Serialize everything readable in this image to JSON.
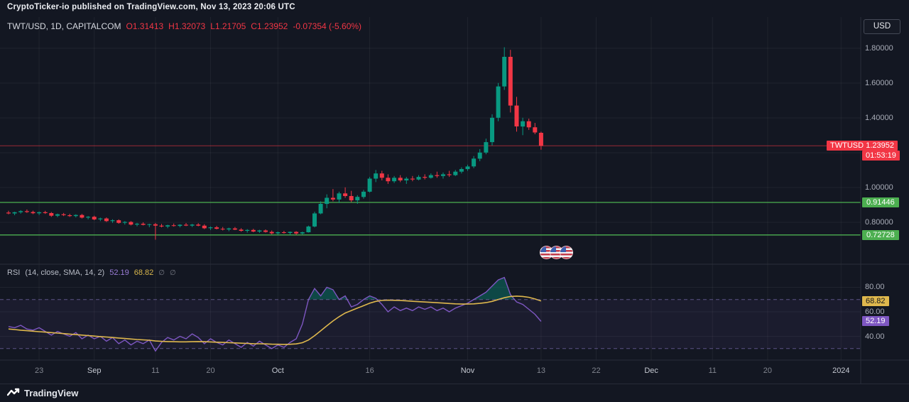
{
  "attribution": "CryptoTicker-io published on TradingView.com, Nov 13, 2023 20:06 UTC",
  "header": {
    "symbol_line": "TWT/USD, 1D, CAPITALCOM",
    "ohlc": {
      "open": "O1.31413",
      "high": "H1.32073",
      "low": "L1.21705",
      "close": "C1.23952",
      "change": "-0.07354 (-5.60%)"
    },
    "currency_button": "USD"
  },
  "rsi_legend": {
    "title": "RSI",
    "params": "(14, close, SMA, 14, 2)",
    "rsi_value": "52.19",
    "sma_value": "68.82",
    "empty1": "∅",
    "empty2": "∅"
  },
  "badges": {
    "price": {
      "symbol": "TWTUSD",
      "value": "1.23952",
      "countdown": "01:53:19",
      "bg": "#f23645"
    },
    "level1": {
      "value": "0.91446",
      "bg": "#4caf50"
    },
    "level2": {
      "value": "0.72728",
      "bg": "#4caf50"
    },
    "sma": {
      "value": "68.82",
      "bg": "#dfb84d"
    },
    "rsi": {
      "value": "52.19",
      "bg": "#7e57c2"
    }
  },
  "footer": {
    "brand": "TradingView"
  },
  "colors": {
    "up": "#089981",
    "down": "#f23645",
    "level_green": "#4caf50",
    "price_line": "#f23645",
    "rsi_line": "#7e57c2",
    "sma_line": "#dfb84d",
    "band_fill": "rgba(126,87,194,0.08)",
    "band_line": "rgba(150,132,212,0.55)",
    "over_fill": "rgba(8,153,129,0.38)",
    "grid": "rgba(250,250,250,0.055)",
    "divider": "#2a2e39"
  },
  "time_axis": {
    "labels": [
      {
        "text": "23",
        "day": 5,
        "major": false
      },
      {
        "text": "Sep",
        "day": 14,
        "major": true
      },
      {
        "text": "11",
        "day": 24,
        "major": false
      },
      {
        "text": "20",
        "day": 33,
        "major": false
      },
      {
        "text": "Oct",
        "day": 44,
        "major": true
      },
      {
        "text": "16",
        "day": 59,
        "major": false
      },
      {
        "text": "Nov",
        "day": 75,
        "major": true
      },
      {
        "text": "13",
        "day": 87,
        "major": false
      },
      {
        "text": "22",
        "day": 96,
        "major": false
      },
      {
        "text": "Dec",
        "day": 105,
        "major": true
      },
      {
        "text": "11",
        "day": 115,
        "major": false
      },
      {
        "text": "20",
        "day": 124,
        "major": false
      },
      {
        "text": "2024",
        "day": 136,
        "major": true
      }
    ]
  },
  "chart_data": [
    {
      "type": "candlestick",
      "title": "TWT/USD, 1D, CAPITALCOM",
      "ohlc_last": {
        "open": 1.31413,
        "high": 1.32073,
        "low": 1.21705,
        "close": 1.23952,
        "change": -0.07354,
        "change_pct": -5.6
      },
      "y_axis": {
        "visible_labels": [
          [
            1.8,
            "1.80000"
          ],
          [
            1.6,
            "1.60000"
          ],
          [
            1.4,
            "1.40000"
          ],
          [
            1.0,
            "1.00000"
          ],
          [
            0.8,
            "0.80000"
          ]
        ],
        "grid": [
          0.8,
          1.0,
          1.2,
          1.4,
          1.6,
          1.8
        ],
        "range": [
          0.57,
          1.96
        ]
      },
      "levels": {
        "current_price": 1.23952,
        "horizontal_line_1": 0.91446,
        "horizontal_line_2": 0.72728
      },
      "candles": [
        [
          0.856,
          0.866,
          0.846,
          0.851
        ],
        [
          0.851,
          0.861,
          0.841,
          0.858
        ],
        [
          0.858,
          0.87,
          0.85,
          0.864
        ],
        [
          0.864,
          0.874,
          0.854,
          0.859
        ],
        [
          0.859,
          0.867,
          0.847,
          0.852
        ],
        [
          0.852,
          0.862,
          0.842,
          0.858
        ],
        [
          0.858,
          0.866,
          0.848,
          0.853
        ],
        [
          0.853,
          0.859,
          0.831,
          0.838
        ],
        [
          0.838,
          0.85,
          0.83,
          0.846
        ],
        [
          0.846,
          0.854,
          0.836,
          0.841
        ],
        [
          0.841,
          0.849,
          0.831,
          0.836
        ],
        [
          0.836,
          0.846,
          0.828,
          0.842
        ],
        [
          0.842,
          0.848,
          0.822,
          0.827
        ],
        [
          0.827,
          0.836,
          0.817,
          0.832
        ],
        [
          0.832,
          0.838,
          0.812,
          0.817
        ],
        [
          0.817,
          0.827,
          0.807,
          0.822
        ],
        [
          0.822,
          0.828,
          0.802,
          0.807
        ],
        [
          0.807,
          0.817,
          0.797,
          0.812
        ],
        [
          0.812,
          0.817,
          0.792,
          0.797
        ],
        [
          0.797,
          0.807,
          0.787,
          0.802
        ],
        [
          0.802,
          0.807,
          0.782,
          0.787
        ],
        [
          0.787,
          0.797,
          0.777,
          0.792
        ],
        [
          0.792,
          0.8,
          0.782,
          0.786
        ],
        [
          0.786,
          0.792,
          0.772,
          0.789
        ],
        [
          0.789,
          0.796,
          0.7,
          0.781
        ],
        [
          0.781,
          0.791,
          0.771,
          0.776
        ],
        [
          0.776,
          0.786,
          0.766,
          0.783
        ],
        [
          0.783,
          0.793,
          0.775,
          0.779
        ],
        [
          0.779,
          0.789,
          0.771,
          0.786
        ],
        [
          0.786,
          0.796,
          0.778,
          0.781
        ],
        [
          0.781,
          0.791,
          0.773,
          0.787
        ],
        [
          0.787,
          0.795,
          0.777,
          0.781
        ],
        [
          0.781,
          0.789,
          0.761,
          0.766
        ],
        [
          0.766,
          0.776,
          0.756,
          0.771
        ],
        [
          0.771,
          0.779,
          0.759,
          0.763
        ],
        [
          0.763,
          0.773,
          0.753,
          0.759
        ],
        [
          0.759,
          0.769,
          0.749,
          0.765
        ],
        [
          0.765,
          0.773,
          0.755,
          0.758
        ],
        [
          0.758,
          0.766,
          0.746,
          0.751
        ],
        [
          0.751,
          0.761,
          0.741,
          0.756
        ],
        [
          0.756,
          0.763,
          0.743,
          0.747
        ],
        [
          0.747,
          0.757,
          0.739,
          0.753
        ],
        [
          0.753,
          0.759,
          0.741,
          0.745
        ],
        [
          0.745,
          0.753,
          0.731,
          0.737
        ],
        [
          0.737,
          0.747,
          0.729,
          0.743
        ],
        [
          0.743,
          0.751,
          0.735,
          0.739
        ],
        [
          0.739,
          0.747,
          0.727,
          0.745
        ],
        [
          0.745,
          0.749,
          0.728,
          0.736
        ],
        [
          0.736,
          0.746,
          0.73,
          0.743
        ],
        [
          0.743,
          0.781,
          0.741,
          0.776
        ],
        [
          0.776,
          0.861,
          0.771,
          0.851
        ],
        [
          0.851,
          0.921,
          0.846,
          0.906
        ],
        [
          0.906,
          0.961,
          0.881,
          0.941
        ],
        [
          0.941,
          0.991,
          0.921,
          0.931
        ],
        [
          0.931,
          0.976,
          0.911,
          0.966
        ],
        [
          0.966,
          1.001,
          0.941,
          0.951
        ],
        [
          0.951,
          0.981,
          0.916,
          0.926
        ],
        [
          0.926,
          0.956,
          0.906,
          0.946
        ],
        [
          0.946,
          0.986,
          0.936,
          0.976
        ],
        [
          0.976,
          1.061,
          0.971,
          1.051
        ],
        [
          1.051,
          1.101,
          1.031,
          1.081
        ],
        [
          1.081,
          1.096,
          1.041,
          1.056
        ],
        [
          1.056,
          1.076,
          1.021,
          1.036
        ],
        [
          1.036,
          1.066,
          1.026,
          1.056
        ],
        [
          1.056,
          1.071,
          1.031,
          1.041
        ],
        [
          1.041,
          1.061,
          1.021,
          1.051
        ],
        [
          1.051,
          1.066,
          1.036,
          1.046
        ],
        [
          1.046,
          1.071,
          1.041,
          1.061
        ],
        [
          1.061,
          1.076,
          1.046,
          1.056
        ],
        [
          1.056,
          1.081,
          1.051,
          1.071
        ],
        [
          1.071,
          1.091,
          1.056,
          1.066
        ],
        [
          1.066,
          1.086,
          1.051,
          1.076
        ],
        [
          1.076,
          1.096,
          1.061,
          1.071
        ],
        [
          1.071,
          1.101,
          1.066,
          1.091
        ],
        [
          1.091,
          1.116,
          1.081,
          1.106
        ],
        [
          1.106,
          1.131,
          1.096,
          1.121
        ],
        [
          1.121,
          1.181,
          1.111,
          1.166
        ],
        [
          1.166,
          1.221,
          1.151,
          1.201
        ],
        [
          1.201,
          1.281,
          1.191,
          1.261
        ],
        [
          1.261,
          1.421,
          1.241,
          1.401
        ],
        [
          1.401,
          1.601,
          1.381,
          1.581
        ],
        [
          1.581,
          1.806,
          1.561,
          1.751
        ],
        [
          1.751,
          1.791,
          1.431,
          1.471
        ],
        [
          1.471,
          1.521,
          1.321,
          1.351
        ],
        [
          1.351,
          1.401,
          1.301,
          1.381
        ],
        [
          1.381,
          1.396,
          1.331,
          1.346
        ],
        [
          1.346,
          1.371,
          1.306,
          1.316
        ],
        [
          1.31413,
          1.32073,
          1.21705,
          1.23952
        ]
      ]
    },
    {
      "type": "line",
      "name": "RSI (14, close, SMA, 14, 2)",
      "bands": [
        70,
        30
      ],
      "grid": [
        40,
        60,
        80
      ],
      "axis_labels": [
        [
          80,
          "80.00"
        ],
        [
          60,
          "60.00"
        ],
        [
          40,
          "40.00"
        ]
      ],
      "last_values": {
        "rsi": 52.19,
        "sma": 68.82
      },
      "series": [
        {
          "name": "RSI",
          "color": "#7e57c2",
          "values": [
            48,
            47,
            49,
            46,
            45,
            47,
            44,
            41,
            44,
            42,
            40,
            43,
            38,
            41,
            38,
            40,
            36,
            39,
            34,
            37,
            33,
            36,
            34,
            37,
            28,
            35,
            39,
            37,
            40,
            38,
            42,
            39,
            34,
            38,
            35,
            33,
            37,
            34,
            31,
            35,
            32,
            36,
            33,
            30,
            33,
            31,
            35,
            38,
            50,
            70,
            79,
            73,
            80,
            78,
            70,
            73,
            64,
            66,
            70,
            73,
            71,
            66,
            60,
            64,
            61,
            63,
            61,
            64,
            62,
            64,
            61,
            63,
            60,
            63,
            65,
            67,
            70,
            73,
            76,
            81,
            86,
            88,
            74,
            68,
            66,
            62,
            58,
            52.19
          ]
        },
        {
          "name": "RSI-based MA",
          "color": "#dfb84d",
          "values": [
            46,
            45.5,
            45,
            44.6,
            44.2,
            43.8,
            43.4,
            43,
            42.6,
            42.2,
            41.8,
            41.4,
            41,
            40.6,
            40.2,
            39.8,
            39.4,
            39,
            38.6,
            38.2,
            37.8,
            37.4,
            37.1,
            36.8,
            36.2,
            35.9,
            35.7,
            35.6,
            35.5,
            35.5,
            35.6,
            35.7,
            35.6,
            35.4,
            35.2,
            35,
            34.8,
            34.6,
            34.4,
            34.2,
            34,
            33.9,
            33.8,
            33.6,
            33.5,
            33.4,
            33.5,
            33.8,
            34.8,
            37,
            40.5,
            44.5,
            48.5,
            52.5,
            56,
            59,
            61,
            63,
            65,
            67,
            68.5,
            69.3,
            69.5,
            69.4,
            69.2,
            68.9,
            68.6,
            68.3,
            68,
            67.7,
            67.4,
            67.1,
            66.8,
            66.5,
            66.3,
            66.3,
            66.5,
            66.9,
            67.5,
            68.5,
            70,
            71.5,
            72.5,
            72.8,
            72.5,
            71.8,
            70.5,
            68.82
          ]
        }
      ]
    }
  ]
}
